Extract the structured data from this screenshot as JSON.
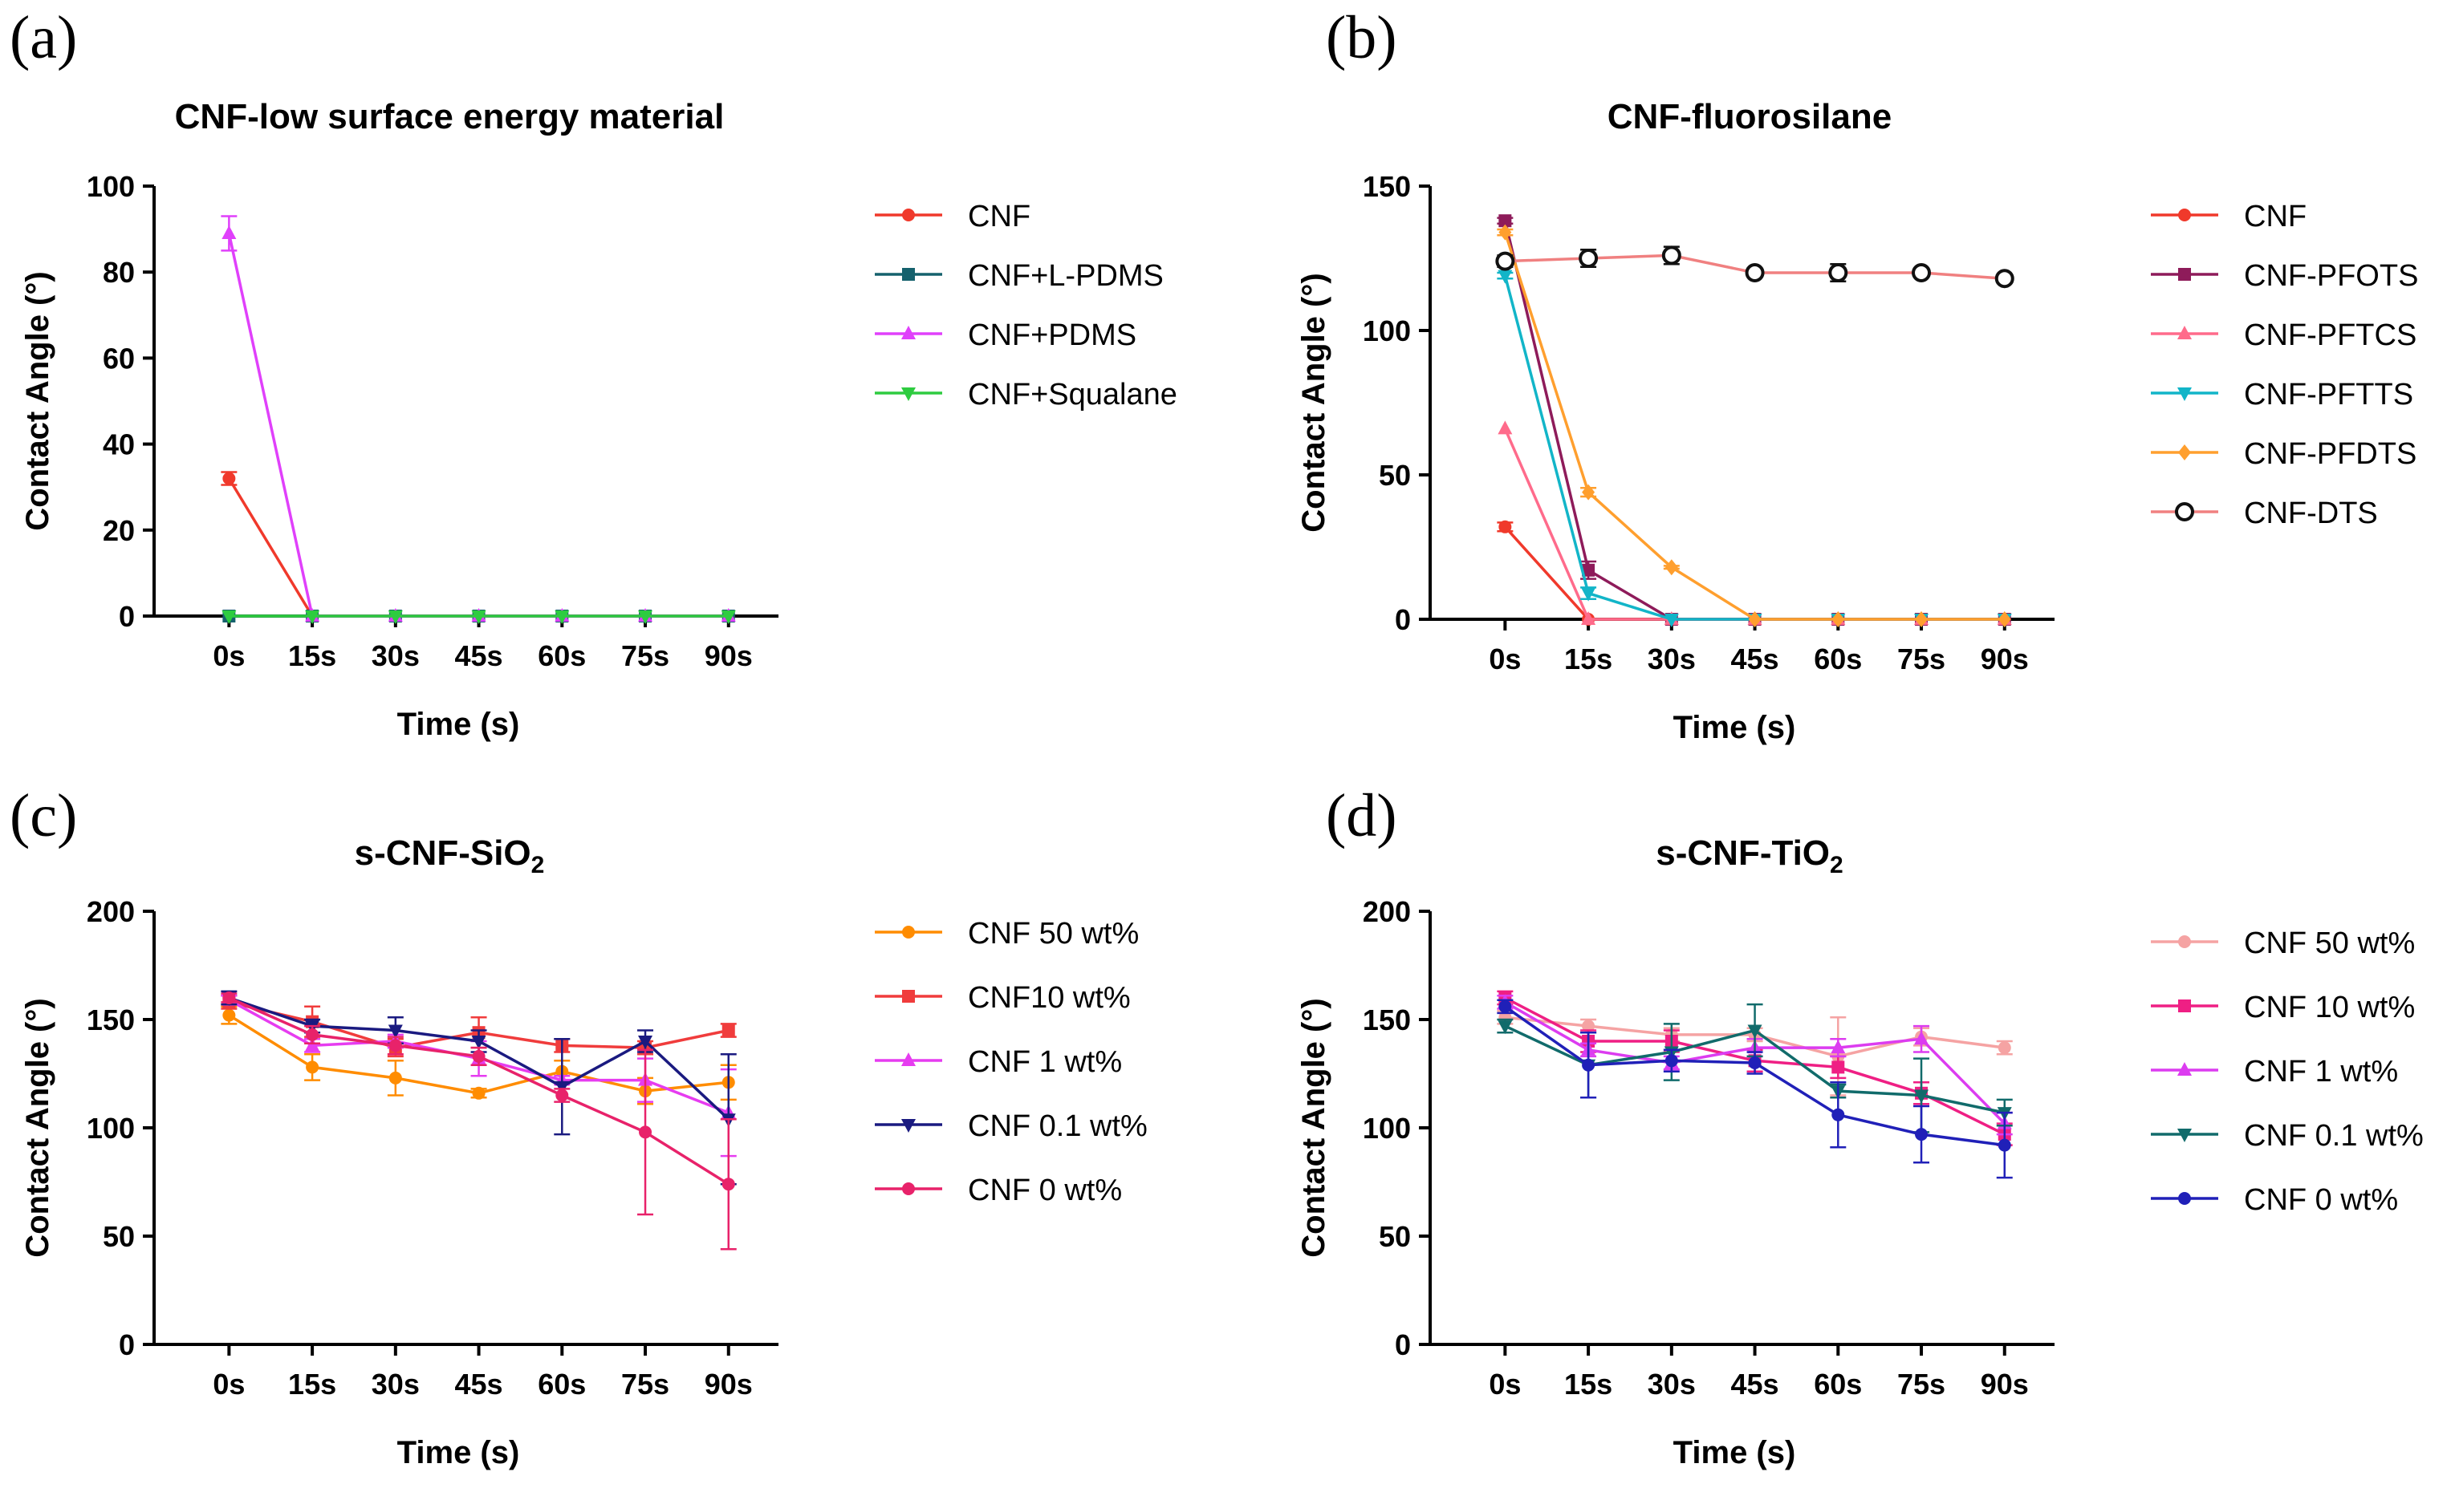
{
  "chart_data": [
    {
      "panel": "(a)",
      "type": "line",
      "title": "CNF-low surface energy material",
      "xlabel": "Time (s)",
      "ylabel": "Contact Angle (°)",
      "categories": [
        "0s",
        "15s",
        "30s",
        "45s",
        "60s",
        "75s",
        "90s"
      ],
      "ylim": [
        0,
        100
      ],
      "yticks": [
        0,
        20,
        40,
        60,
        80,
        100
      ],
      "legend_position": "right",
      "series": [
        {
          "name": "CNF",
          "color": "#f0392b",
          "marker": "circle",
          "values": [
            32,
            0,
            0,
            0,
            0,
            0,
            0
          ],
          "errors": [
            1.5,
            0,
            0,
            0,
            0,
            0,
            0
          ]
        },
        {
          "name": "CNF+L-PDMS",
          "color": "#15616d",
          "marker": "square",
          "values": [
            0,
            0,
            0,
            0,
            0,
            0,
            0
          ],
          "errors": [
            0,
            0,
            0,
            0,
            0,
            0,
            0
          ]
        },
        {
          "name": "CNF+PDMS",
          "color": "#e040fb",
          "marker": "triangle-up",
          "values": [
            89,
            0,
            0,
            0,
            0,
            0,
            0
          ],
          "errors": [
            4,
            0,
            0,
            0,
            0,
            0,
            0
          ]
        },
        {
          "name": "CNF+Squalane",
          "color": "#2ecc40",
          "marker": "triangle-down",
          "values": [
            0,
            0,
            0,
            0,
            0,
            0,
            0
          ],
          "errors": [
            0,
            0,
            0,
            0,
            0,
            0,
            0
          ]
        }
      ]
    },
    {
      "panel": "(b)",
      "type": "line",
      "title": "CNF-fluorosilane",
      "xlabel": "Time (s)",
      "ylabel": "Contact Angle (°)",
      "categories": [
        "0s",
        "15s",
        "30s",
        "45s",
        "60s",
        "75s",
        "90s"
      ],
      "ylim": [
        0,
        150
      ],
      "yticks": [
        0,
        50,
        100,
        150
      ],
      "legend_position": "right",
      "series": [
        {
          "name": "CNF",
          "color": "#f0392b",
          "marker": "circle",
          "values": [
            32,
            0,
            0,
            0,
            0,
            0,
            0
          ],
          "errors": [
            1.5,
            0,
            0,
            0,
            0,
            0,
            0
          ]
        },
        {
          "name": "CNF-PFOTS",
          "color": "#8e1b5a",
          "marker": "square",
          "values": [
            138,
            17,
            0,
            0,
            0,
            0,
            0
          ],
          "errors": [
            1,
            3,
            0,
            0,
            0,
            0,
            0
          ]
        },
        {
          "name": "CNF-PFTCS",
          "color": "#ff6b8b",
          "marker": "triangle-up",
          "values": [
            66,
            0,
            0,
            0,
            0,
            0,
            0
          ],
          "errors": [
            0,
            0,
            0,
            0,
            0,
            0,
            0
          ]
        },
        {
          "name": "CNF-PFTTS",
          "color": "#12b5c8",
          "marker": "triangle-down",
          "values": [
            119,
            9,
            0,
            0,
            0,
            0,
            0
          ],
          "errors": [
            1,
            2,
            0,
            0,
            0,
            0,
            0
          ]
        },
        {
          "name": "CNF-PFDTS",
          "color": "#ff9f2e",
          "marker": "diamond",
          "values": [
            134,
            44,
            18,
            0,
            0,
            0,
            0
          ],
          "errors": [
            1,
            1.5,
            0.5,
            0,
            0,
            0,
            0
          ]
        },
        {
          "name": "CNF-DTS",
          "color": "#f08080",
          "marker": "open-circle",
          "values": [
            124,
            125,
            126,
            120,
            120,
            120,
            118
          ],
          "errors": [
            2,
            3,
            3,
            1.5,
            3,
            1.5,
            1
          ]
        }
      ]
    },
    {
      "panel": "(c)",
      "type": "line",
      "title": "s-CNF-SiO",
      "title_subscript": "2",
      "xlabel": "Time (s)",
      "ylabel": "Contact Angle (°)",
      "categories": [
        "0s",
        "15s",
        "30s",
        "45s",
        "60s",
        "75s",
        "90s"
      ],
      "ylim": [
        0,
        200
      ],
      "yticks": [
        0,
        50,
        100,
        150,
        200
      ],
      "legend_position": "right",
      "series": [
        {
          "name": "CNF 50 wt%",
          "color": "#ff8c00",
          "marker": "circle",
          "values": [
            152,
            128,
            123,
            116,
            126,
            117,
            121
          ],
          "errors": [
            4,
            6,
            8,
            2,
            5,
            6,
            8
          ]
        },
        {
          "name": "CNF10 wt%",
          "color": "#f03c3c",
          "marker": "square",
          "values": [
            158,
            149,
            137,
            144,
            138,
            137,
            145
          ],
          "errors": [
            3,
            7,
            4,
            7,
            3,
            3,
            3
          ]
        },
        {
          "name": "CNF 1 wt%",
          "color": "#e63cf0",
          "marker": "triangle-up",
          "values": [
            159,
            138,
            140,
            132,
            122,
            122,
            107
          ],
          "errors": [
            2,
            3,
            3,
            8,
            2,
            10,
            20
          ]
        },
        {
          "name": "CNF 0.1 wt%",
          "color": "#1a1a80",
          "marker": "triangle-down",
          "values": [
            160,
            147,
            145,
            140,
            119,
            140,
            104
          ],
          "errors": [
            3,
            3,
            6,
            5,
            22,
            5,
            30
          ]
        },
        {
          "name": "CNF 0 wt%",
          "color": "#e8226a",
          "marker": "circle",
          "values": [
            160,
            143,
            138,
            133,
            115,
            98,
            74
          ],
          "errors": [
            2,
            4,
            4,
            4,
            3,
            38,
            30
          ]
        }
      ]
    },
    {
      "panel": "(d)",
      "type": "line",
      "title": "s-CNF-TiO",
      "title_subscript": "2",
      "xlabel": "Time (s)",
      "ylabel": "Contact Angle (°)",
      "categories": [
        "0s",
        "15s",
        "30s",
        "45s",
        "60s",
        "75s",
        "90s"
      ],
      "ylim": [
        0,
        200
      ],
      "yticks": [
        0,
        50,
        100,
        150,
        200
      ],
      "legend_position": "right",
      "series": [
        {
          "name": "CNF 50 wt%",
          "color": "#f5a3a3",
          "marker": "circle",
          "values": [
            151,
            147,
            143,
            143,
            133,
            142,
            137
          ],
          "errors": [
            3,
            3,
            3,
            3,
            18,
            4,
            3
          ]
        },
        {
          "name": "CNF 10 wt%",
          "color": "#ef1f84",
          "marker": "square",
          "values": [
            160,
            140,
            140,
            131,
            128,
            116,
            97
          ],
          "errors": [
            3,
            5,
            5,
            5,
            5,
            5,
            5
          ]
        },
        {
          "name": "CNF 1 wt%",
          "color": "#dc3cf0",
          "marker": "triangle-up",
          "values": [
            158,
            136,
            130,
            137,
            137,
            141,
            102
          ],
          "errors": [
            3,
            3,
            3,
            4,
            4,
            6,
            5
          ]
        },
        {
          "name": "CNF 0.1 wt%",
          "color": "#116b6b",
          "marker": "triangle-down",
          "values": [
            147,
            129,
            135,
            145,
            117,
            115,
            107
          ],
          "errors": [
            3,
            15,
            13,
            12,
            3,
            17,
            6
          ]
        },
        {
          "name": "CNF 0 wt%",
          "color": "#2020b8",
          "marker": "circle",
          "values": [
            156,
            129,
            131,
            130,
            106,
            97,
            92
          ],
          "errors": [
            3,
            15,
            5,
            5,
            15,
            13,
            15
          ]
        }
      ]
    }
  ]
}
